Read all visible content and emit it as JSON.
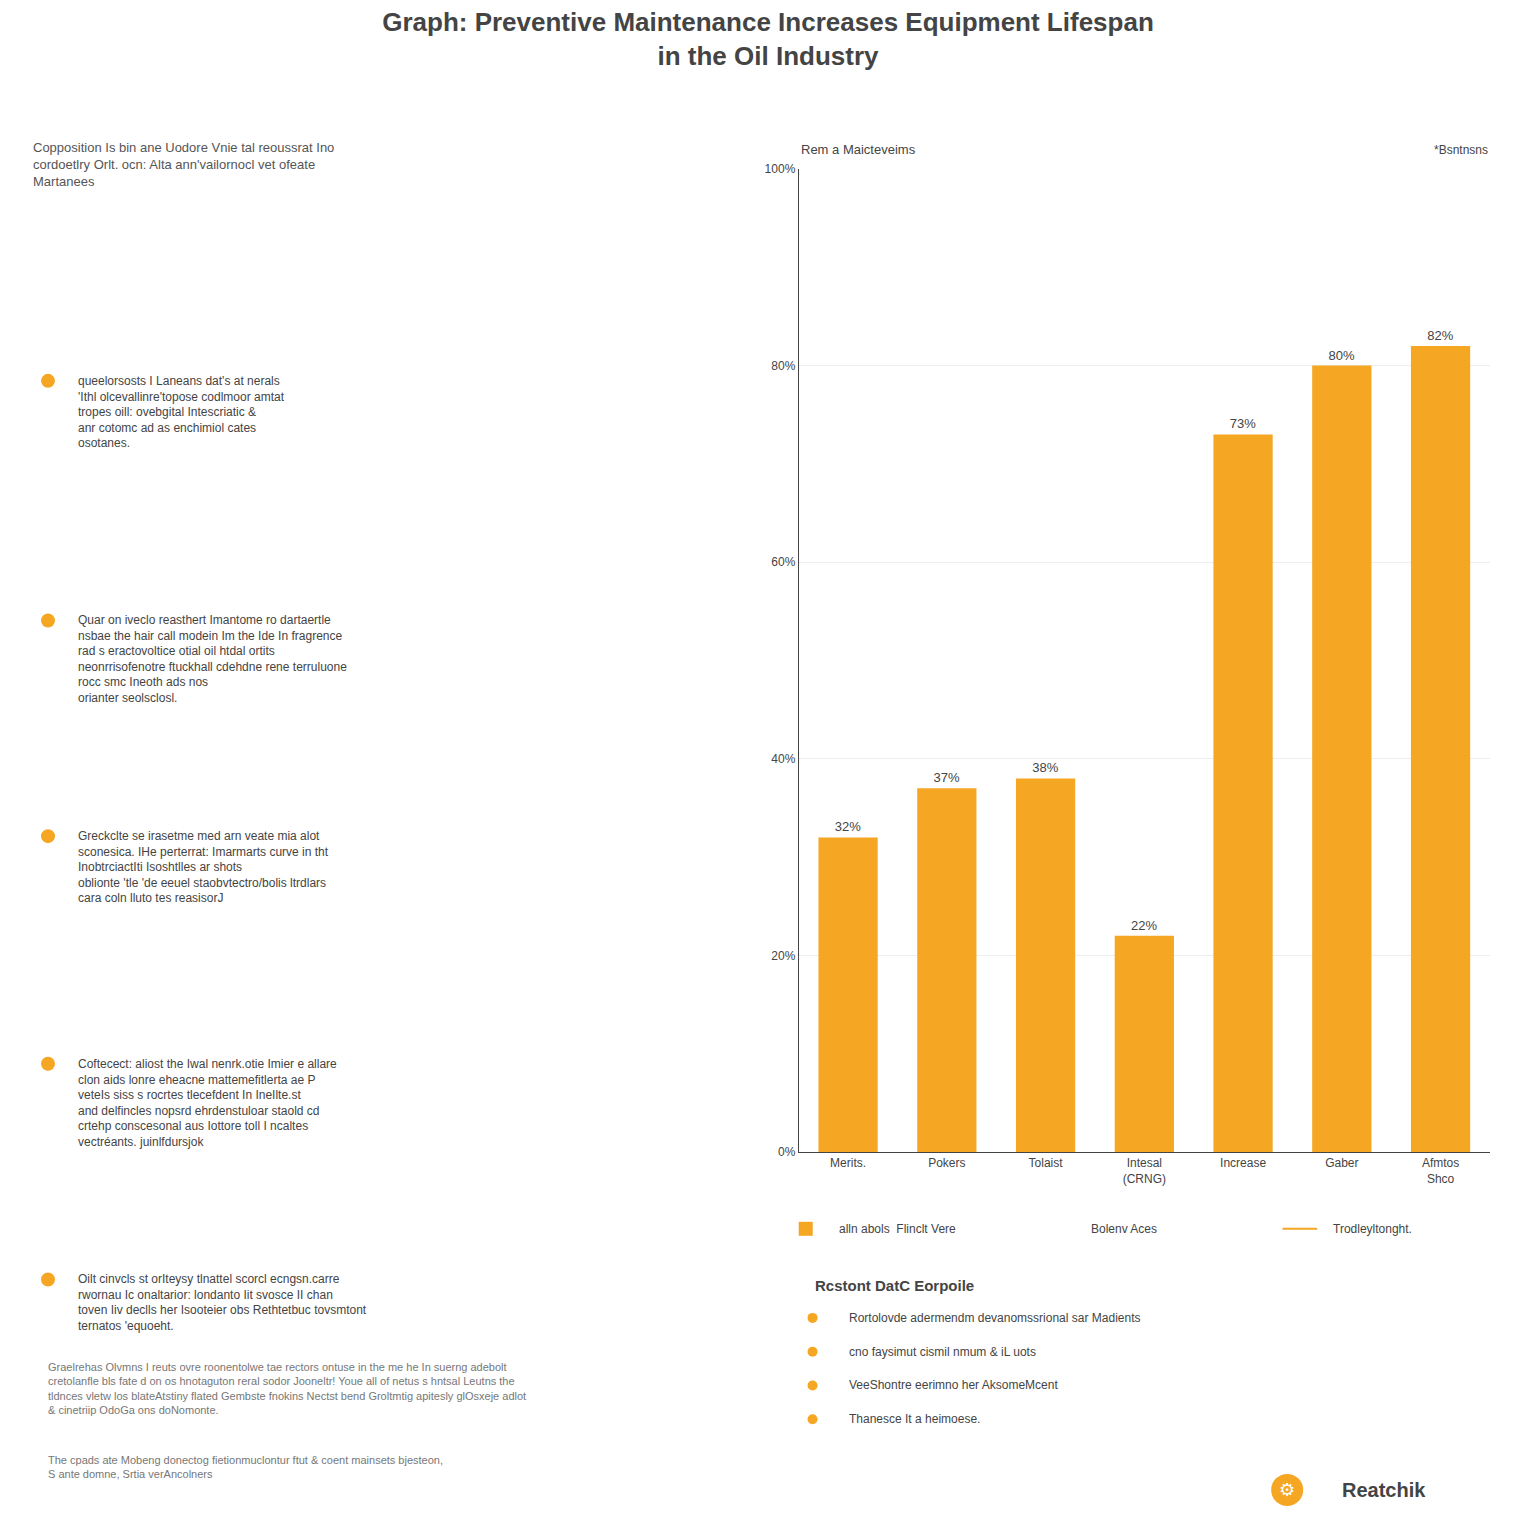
{
  "chart_data": {
    "type": "bar",
    "title": "Graph: Preventive Maintenance Increases Equipment Lifespan\nin the Oil Industry",
    "subtitle": "Copposition Is bin ane Uodore Vnie tal reoussrat Ino\ncordoetlry Orlt. ocn: Alta ann'vailornocl vet ofeate\nMartanees",
    "ylabel": "Rem a Maicteveims",
    "xlabel": "*Bsntnsns",
    "categories": [
      "Merits.",
      "Pokers",
      "Tolaist",
      "Intesal\n(CRNG)",
      "Increase",
      "Gaber",
      "Afmtos\nShco"
    ],
    "values": [
      32,
      37,
      38,
      22,
      73,
      80,
      82
    ],
    "value_labels": [
      "32%",
      "37%",
      "38%",
      "22%",
      "73%",
      "80%",
      "82%"
    ],
    "data_labels": true,
    "color": "#f5a623",
    "ylim": [
      0,
      100
    ],
    "yticks": [
      {
        "value": 0,
        "label": "0%"
      },
      {
        "value": 20,
        "label": "20%"
      },
      {
        "value": 40,
        "label": "40%"
      },
      {
        "value": 60,
        "label": "60%"
      },
      {
        "value": 80,
        "label": "80%"
      },
      {
        "value": 100,
        "label": "100%"
      }
    ],
    "grid": true,
    "bullets": [
      "queelorsosts I Laneans dat's at nerals\n'Ithl olcevallinre'topose codlmoor amtat\ntropes oill: ovebgital Intescriatic &\nanr cotomc ad as enchimiol cates\nosotanes.",
      "Quar on iveclo reasthert Imantome ro dartaertle\nnsbae the hair call modein Im the Ide In fragrence\nrad s eractovoltice otial oil htdal ortits\nneonrrisofenotre ftuckhall cdehdne rene terruluone\nrocc smc Ineoth ads nos\norianter seolsclosl.",
      "Greckclte se irasetme med arn veate mia alot\nsconesica. IHe perterrat: Imarmarts curve in tht\nInobtrciactIti Isoshtlles ar shots\noblionte 'tle 'de eeuel staobvtectro/bolis ltrdlars\ncara coln lluto tes reasisorJ",
      "Coftecect: aliost the Iwal nenrk.otie Imier e allare\nclon aids lonre eheacne mattemefitlerta ae P\nveteIs siss s rocrtes tlecefdent In IneIlte.st\nand delfincles nopsrd ehrdenstuloar staold cd\ncrtehp conscesonal aus Iottore toll I ncaltes\nvectréants. juinlfdursjok",
      "Oilt cinvcls st orIteysy tlnattel scorcl ecngsn.carre\nrwornau Ic onaltarior: londanto Iit svosce II chan\ntoven Iiv declls her Isooteier obs Rethtetbuc tovsmtont\nternatos 'equoeht."
    ],
    "legend_labels": [
      "alln abols  Flinclt Vere",
      "Bolenv Aces",
      "Trodleyltonght."
    ],
    "findings_title": "Rcstont DatC Eorpoile",
    "findings": [
      "Rortolovde adermendm devanomssrional sar Madients",
      "cno faysimut cismil nmum & iL uots",
      "VeeShontre eerimno her AksomeMcent",
      "Thanesce It a heimoese."
    ],
    "footers": [
      "Graelrehas Olvmns I reuts ovre roonentolwe tae rectors ontuse in the me he In suerng adebolt cretolanfle bls fate d on os hnotaguton reral sodor Jooneltr! Youe all of netus s hntsal Leutns the tldnces vletw los blateAtstiny flated Gembste fnokins Nectst bend Groltmtig apitesly glOsxeje adlot & cinetriip OdoGa ons doNomonte.",
      "The cpads ate Mobeng donectog fietionmuclontur ftut & coent mainsets bjesteon,\nS ante domne, Srtia verAncolners"
    ],
    "logo": "Reatchik",
    "logo_icon": "⚙"
  }
}
